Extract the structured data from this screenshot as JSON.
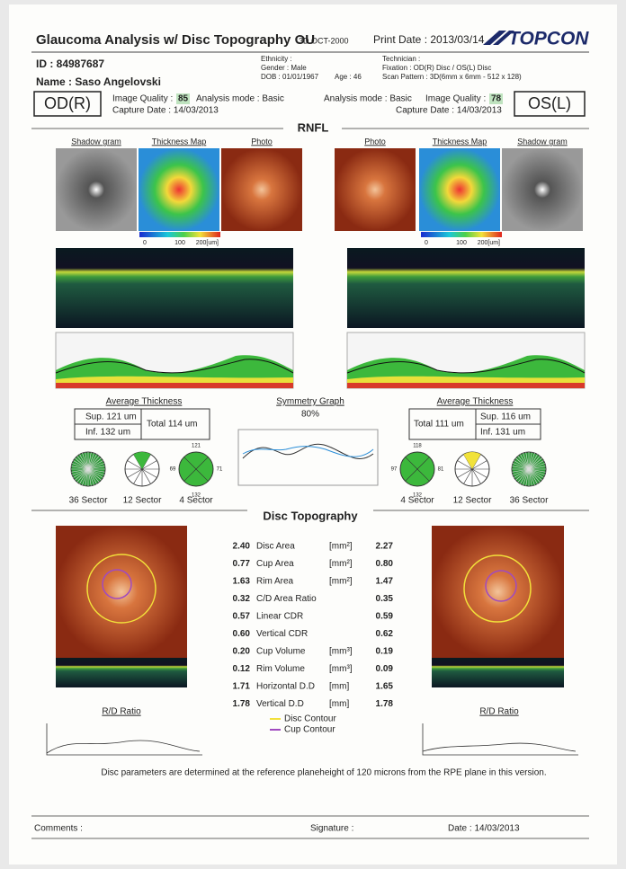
{
  "header": {
    "title": "Glaucoma Analysis w/ Disc Topography OU",
    "version": "3D OCT-2000",
    "print_date": "Print Date : 2013/03/14",
    "brand": "TOPCON"
  },
  "patient": {
    "id": "ID : 84987687",
    "name": "Name : Saso Angelovski",
    "ethnicity": "Ethnicity :",
    "gender": "Gender : Male",
    "dob": "DOB : 01/01/1967",
    "age": "Age : 46",
    "technician": "Technician :",
    "fixation": "Fixation : OD(R) Disc / OS(L) Disc",
    "scan_pattern": "Scan Pattern : 3D(6mm x 6mm - 512 x 128)"
  },
  "od": {
    "label": "OD(R)",
    "image_quality_label": "Image Quality :",
    "image_quality": 85,
    "analysis_mode": "Analysis mode : Basic",
    "capture_date": "Capture Date : 14/03/2013",
    "sup": "Sup. 121 um",
    "inf": "Inf. 132 um",
    "total": "Total 114 um",
    "four_sector": [
      121,
      69,
      132,
      71
    ]
  },
  "os": {
    "label": "OS(L)",
    "image_quality_label": "Image Quality :",
    "image_quality": 78,
    "analysis_mode": "Analysis mode : Basic",
    "capture_date": "Capture Date : 14/03/2013",
    "sup": "Sup. 116 um",
    "inf": "Inf. 131 um",
    "total": "Total 111 um",
    "four_sector": [
      118,
      97,
      132,
      81
    ]
  },
  "rnfl": {
    "title": "RNFL",
    "shadow_gram": "Shadow gram",
    "thickness_map": "Thickness Map",
    "photo": "Photo",
    "scale": [
      "0",
      "100",
      "200[um]"
    ],
    "average_thickness": "Average Thickness",
    "symmetry_graph": "Symmetry Graph",
    "symmetry": "80%",
    "sectors": [
      "36 Sector",
      "12 Sector",
      "4 Sector"
    ]
  },
  "disc": {
    "title": "Disc Topography",
    "rows": [
      [
        "2.40",
        "Disc Area",
        "[mm²]",
        "2.27"
      ],
      [
        "0.77",
        "Cup Area",
        "[mm²]",
        "0.80"
      ],
      [
        "1.63",
        "Rim Area",
        "[mm²]",
        "1.47"
      ],
      [
        "0.32",
        "C/D Area Ratio",
        "",
        "0.35"
      ],
      [
        "0.57",
        "Linear CDR",
        "",
        "0.59"
      ],
      [
        "0.60",
        "Vertical CDR",
        "",
        "0.62"
      ],
      [
        "0.20",
        "Cup Volume",
        "[mm³]",
        "0.19"
      ],
      [
        "0.12",
        "Rim Volume",
        "[mm³]",
        "0.09"
      ],
      [
        "1.71",
        "Horizontal D.D",
        "[mm]",
        "1.65"
      ],
      [
        "1.78",
        "Vertical D.D",
        "[mm]",
        "1.78"
      ]
    ],
    "rd_ratio": "R/D Ratio",
    "disc_contour": "Disc Contour",
    "cup_contour": "Cup Contour",
    "note": "Disc parameters are determined at the reference planeheight of 120 microns from the RPE plane in this version."
  },
  "footer": {
    "comments": "Comments :",
    "signature": "Signature :",
    "date": "Date : 14/03/2013"
  }
}
